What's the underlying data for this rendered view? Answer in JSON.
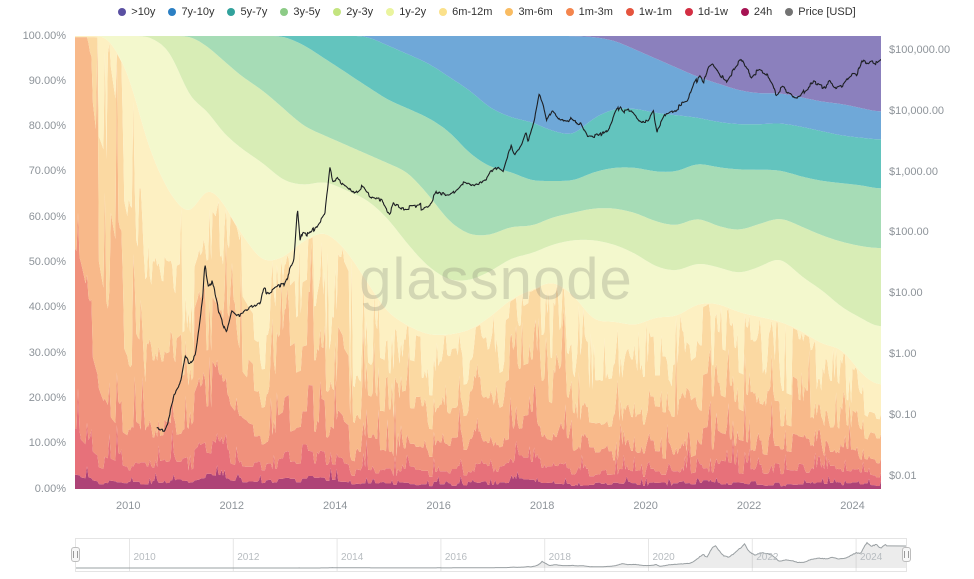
{
  "watermark": "glassnode",
  "legend": {
    "price_label": "Price [USD]",
    "price_dot_color": "#737373"
  },
  "chart_data": {
    "type": "area",
    "subtype": "100%-stacked HODL-wave bands with log-scale price line overlay",
    "x_range_years": [
      2008.97,
      2024.55
    ],
    "sample_years": [
      2009.0,
      2009.3,
      2009.6,
      2010.0,
      2010.4,
      2010.8,
      2011.2,
      2011.5,
      2011.8,
      2012.2,
      2012.6,
      2013.0,
      2013.4,
      2013.8,
      2014.2,
      2014.6,
      2015.0,
      2015.4,
      2015.8,
      2016.2,
      2016.6,
      2017.0,
      2017.4,
      2017.8,
      2018.2,
      2018.6,
      2019.0,
      2019.4,
      2019.8,
      2020.2,
      2020.6,
      2021.0,
      2021.4,
      2021.8,
      2022.2,
      2022.6,
      2023.0,
      2023.4,
      2023.8,
      2024.2,
      2024.6
    ],
    "bands": [
      {
        "name": "24h",
        "color": "#a61353",
        "fill": "#ae4377",
        "values": [
          3,
          2,
          1.5,
          1.2,
          1.2,
          1.5,
          1.5,
          2.5,
          2,
          1.5,
          1.5,
          2,
          2,
          2,
          1.5,
          1,
          1,
          1,
          1,
          1,
          1,
          1.2,
          1.5,
          1.5,
          1.5,
          1,
          1,
          1.2,
          1,
          1.2,
          1,
          1.5,
          1.5,
          1.2,
          1,
          1,
          1,
          1,
          1,
          1,
          0.8
        ]
      },
      {
        "name": "1d-1w",
        "color": "#d32e43",
        "fill": "#e7717a",
        "values": [
          12,
          7,
          5.5,
          3.8,
          3.8,
          4.5,
          4.5,
          7.5,
          5,
          3.5,
          3.5,
          4,
          5,
          4,
          3.5,
          3,
          3,
          2.5,
          2.5,
          2.5,
          2.5,
          2.8,
          3.5,
          3.5,
          3.5,
          3,
          2.5,
          2.8,
          2.5,
          2.8,
          2.5,
          3.5,
          4,
          3.3,
          3,
          3,
          2.5,
          2.5,
          2.5,
          2,
          1.5
        ]
      },
      {
        "name": "1w-1m",
        "color": "#e5543e",
        "fill": "#f0917c",
        "values": [
          30,
          19,
          11,
          8,
          7,
          7,
          8,
          14,
          10,
          7,
          6,
          8,
          9,
          9,
          6,
          5,
          5,
          4.5,
          4.5,
          4.5,
          4.5,
          5,
          6,
          7,
          6,
          5,
          4.5,
          5,
          4.5,
          5,
          4.5,
          6,
          6.5,
          5.5,
          5,
          5,
          4.5,
          4,
          4.5,
          3.5,
          3.2
        ]
      },
      {
        "name": "1m-3m",
        "color": "#f4854d",
        "fill": "#f8b98a",
        "values": [
          55,
          47,
          30,
          19,
          14,
          14,
          16,
          18,
          18,
          12,
          10,
          13,
          14,
          15,
          12,
          9,
          8,
          8,
          8,
          7,
          8,
          9,
          10,
          11,
          11,
          8,
          7,
          8,
          8,
          8,
          8,
          10,
          10,
          9,
          8,
          8,
          7,
          6.5,
          6,
          4.5,
          4
        ]
      },
      {
        "name": "3m-6m",
        "color": "#f9bc62",
        "fill": "#fbd9a2",
        "values": [
          0,
          25,
          40,
          28,
          19,
          15,
          14,
          13,
          15,
          14,
          12,
          11,
          13,
          14,
          14,
          11,
          9,
          9,
          8,
          9,
          9,
          10,
          10,
          11,
          12,
          11,
          9,
          9,
          9,
          10,
          10,
          10,
          10,
          10,
          10,
          9,
          9,
          8,
          7,
          5,
          4.5
        ]
      },
      {
        "name": "6m-12m",
        "color": "#fbe18b",
        "fill": "#fdf0c2",
        "values": [
          0,
          0,
          12,
          32,
          30,
          23,
          16,
          12,
          14,
          18,
          17,
          13,
          12,
          13,
          16,
          17,
          13,
          11,
          10,
          10,
          10,
          10,
          11,
          10,
          12,
          15,
          13,
          11,
          11,
          11,
          12,
          10,
          9,
          10,
          11,
          11,
          11,
          10,
          10,
          9,
          8
        ]
      },
      {
        "name": "1y-2y",
        "color": "#eaf49e",
        "fill": "#f3f8cd",
        "values": [
          0,
          0,
          0,
          8,
          25,
          32,
          26,
          17,
          15,
          19,
          22,
          17,
          12,
          11,
          13,
          18,
          21,
          18,
          15,
          12,
          11,
          10,
          9,
          8,
          8,
          12,
          18,
          17,
          16,
          11,
          10,
          9,
          8,
          8.5,
          11,
          14.3,
          12,
          12,
          9,
          12.5,
          13
        ]
      },
      {
        "name": "2y-3y",
        "color": "#c3e47f",
        "fill": "#d8edb6",
        "values": [
          0,
          0,
          0,
          0,
          0,
          3,
          14,
          14,
          16,
          16,
          16,
          16,
          13,
          10,
          10,
          10,
          12,
          16,
          16,
          13,
          10,
          8,
          7,
          6,
          6,
          6,
          7,
          8,
          9,
          10,
          10,
          10,
          9,
          9.5,
          9.5,
          8.7,
          11,
          12,
          14.5,
          16,
          18
        ]
      },
      {
        "name": "3y-5y",
        "color": "#8ccb86",
        "fill": "#a6dcb6",
        "values": [
          0,
          0,
          0,
          0,
          0,
          0,
          0,
          2,
          5,
          9,
          12,
          16,
          18,
          17,
          16,
          15,
          14,
          14,
          17,
          20,
          18,
          15,
          12,
          10,
          8,
          7,
          8,
          9,
          10,
          11,
          12,
          12,
          13,
          13.5,
          12,
          10.4,
          11,
          12,
          13,
          13.5,
          13
        ]
      },
      {
        "name": "5y-7y",
        "color": "#32a29c",
        "fill": "#63c4be",
        "values": [
          0,
          0,
          0,
          0,
          0,
          0,
          0,
          0,
          0,
          0,
          0,
          0,
          2,
          5,
          8,
          11,
          12,
          12,
          12,
          12,
          14,
          13,
          12,
          13,
          11,
          10,
          12,
          13,
          13,
          13,
          12.5,
          10,
          10,
          10,
          10,
          10.4,
          11,
          11,
          10.5,
          10.5,
          11
        ]
      },
      {
        "name": "7y-10y",
        "color": "#2b7fc3",
        "fill": "#6fa8d8",
        "values": [
          0,
          0,
          0,
          0,
          0,
          0,
          0,
          0,
          0,
          0,
          0,
          0,
          0,
          0,
          0,
          0,
          2,
          4,
          6,
          9,
          12,
          16,
          18,
          19,
          21,
          22,
          17.8,
          15,
          13,
          12,
          10.5,
          9,
          8.5,
          7.5,
          6.8,
          6.6,
          6.5,
          6.5,
          7,
          6.5,
          6
        ]
      },
      {
        "name": ">10y",
        "color": "#5a50a2",
        "fill": "#8b80bd",
        "values": [
          0,
          0,
          0,
          0,
          0,
          0,
          0,
          0,
          0,
          0,
          0,
          0,
          0,
          0,
          0,
          0,
          0,
          0,
          0,
          0,
          0,
          0,
          0,
          0,
          0,
          0,
          0.2,
          1,
          3,
          5,
          7,
          9,
          10.5,
          12,
          12.7,
          12.6,
          13.5,
          14.5,
          15,
          16,
          17
        ]
      }
    ],
    "price_series": {
      "name": "Price [USD]",
      "color": "#1d1f23",
      "years": [
        2010.55,
        2010.7,
        2010.78,
        2010.9,
        2011.0,
        2011.1,
        2011.17,
        2011.3,
        2011.44,
        2011.48,
        2011.55,
        2011.62,
        2011.75,
        2011.9,
        2012.0,
        2012.1,
        2012.3,
        2012.55,
        2012.62,
        2012.7,
        2013.0,
        2013.2,
        2013.27,
        2013.32,
        2013.37,
        2013.5,
        2013.65,
        2013.8,
        2013.9,
        2013.96,
        2014.05,
        2014.2,
        2014.35,
        2014.5,
        2014.7,
        2014.9,
        2015.05,
        2015.12,
        2015.3,
        2015.55,
        2015.85,
        2015.95,
        2016.05,
        2016.2,
        2016.45,
        2016.55,
        2016.7,
        2016.9,
        2017.0,
        2017.15,
        2017.25,
        2017.4,
        2017.47,
        2017.6,
        2017.68,
        2017.73,
        2017.85,
        2017.95,
        2018.02,
        2018.1,
        2018.2,
        2018.35,
        2018.55,
        2018.62,
        2018.75,
        2018.88,
        2018.95,
        2019.1,
        2019.3,
        2019.5,
        2019.6,
        2019.75,
        2019.9,
        2020.05,
        2020.15,
        2020.22,
        2020.4,
        2020.6,
        2020.8,
        2020.95,
        2021.05,
        2021.12,
        2021.22,
        2021.3,
        2021.45,
        2021.55,
        2021.7,
        2021.85,
        2021.95,
        2022.05,
        2022.2,
        2022.35,
        2022.45,
        2022.52,
        2022.65,
        2022.8,
        2022.88,
        2023.0,
        2023.1,
        2023.25,
        2023.45,
        2023.55,
        2023.65,
        2023.8,
        2023.92,
        2024.0,
        2024.08,
        2024.2,
        2024.3,
        2024.38,
        2024.48,
        2024.55,
        2024.6
      ],
      "usd": [
        0.06,
        0.06,
        0.09,
        0.22,
        0.3,
        0.9,
        0.7,
        1.0,
        8.5,
        31,
        14,
        17,
        5.5,
        2.3,
        5.2,
        4.4,
        5.0,
        6.7,
        11.8,
        10.2,
        13.4,
        34,
        230,
        68,
        110,
        95,
        130,
        210,
        1150,
        700,
        840,
        600,
        450,
        590,
        380,
        330,
        210,
        290,
        235,
        255,
        310,
        460,
        400,
        415,
        700,
        640,
        610,
        730,
        960,
        1180,
        1020,
        2600,
        1900,
        2800,
        4300,
        3200,
        7200,
        19000,
        13500,
        7000,
        9800,
        6700,
        7500,
        6200,
        6500,
        3800,
        3900,
        3700,
        5300,
        13000,
        9800,
        10300,
        7200,
        7300,
        10300,
        4900,
        9200,
        11500,
        13500,
        28000,
        40000,
        31000,
        57000,
        63500,
        35000,
        31000,
        49000,
        68500,
        47000,
        37500,
        45500,
        39000,
        29500,
        19000,
        24000,
        19500,
        15800,
        16600,
        23000,
        28500,
        26500,
        31000,
        26000,
        28500,
        37800,
        44000,
        42500,
        72500,
        63000,
        67500,
        58500,
        68000,
        63500
      ]
    },
    "axes": {
      "left_ticks": [
        {
          "label": "100.00%",
          "pct": 100
        },
        {
          "label": "90.00%",
          "pct": 90
        },
        {
          "label": "80.00%",
          "pct": 80
        },
        {
          "label": "70.00%",
          "pct": 70
        },
        {
          "label": "60.00%",
          "pct": 60
        },
        {
          "label": "50.00%",
          "pct": 50
        },
        {
          "label": "40.00%",
          "pct": 40
        },
        {
          "label": "30.00%",
          "pct": 30
        },
        {
          "label": "20.00%",
          "pct": 20
        },
        {
          "label": "10.00%",
          "pct": 10
        },
        {
          "label": "0.00%",
          "pct": 0
        }
      ],
      "right_ticks": [
        {
          "label": "$100,000.00",
          "usd": 100000
        },
        {
          "label": "$10,000.00",
          "usd": 10000
        },
        {
          "label": "$1,000.00",
          "usd": 1000
        },
        {
          "label": "$100.00",
          "usd": 100
        },
        {
          "label": "$10.00",
          "usd": 10
        },
        {
          "label": "$1.00",
          "usd": 1
        },
        {
          "label": "$0.10",
          "usd": 0.1
        },
        {
          "label": "$0.01",
          "usd": 0.01
        }
      ],
      "x_ticks": [
        {
          "label": "2010",
          "year": 2010
        },
        {
          "label": "2012",
          "year": 2012
        },
        {
          "label": "2014",
          "year": 2014
        },
        {
          "label": "2016",
          "year": 2016
        },
        {
          "label": "2018",
          "year": 2018
        },
        {
          "label": "2020",
          "year": 2020
        },
        {
          "label": "2022",
          "year": 2022
        },
        {
          "label": "2024",
          "year": 2024
        }
      ],
      "grid": false,
      "legend_position": "top-center"
    }
  },
  "navigator": {
    "year_labels": [
      {
        "label": "2010",
        "year": 2010
      },
      {
        "label": "2012",
        "year": 2012
      },
      {
        "label": "2014",
        "year": 2014
      },
      {
        "label": "2016",
        "year": 2016
      },
      {
        "label": "2018",
        "year": 2018
      },
      {
        "label": "2020",
        "year": 2020
      },
      {
        "label": "2022",
        "year": 2022
      },
      {
        "label": "2024",
        "year": 2024
      }
    ],
    "line_color": "#9aa0a3",
    "fill_color": "rgba(150,150,150,0.18)"
  }
}
